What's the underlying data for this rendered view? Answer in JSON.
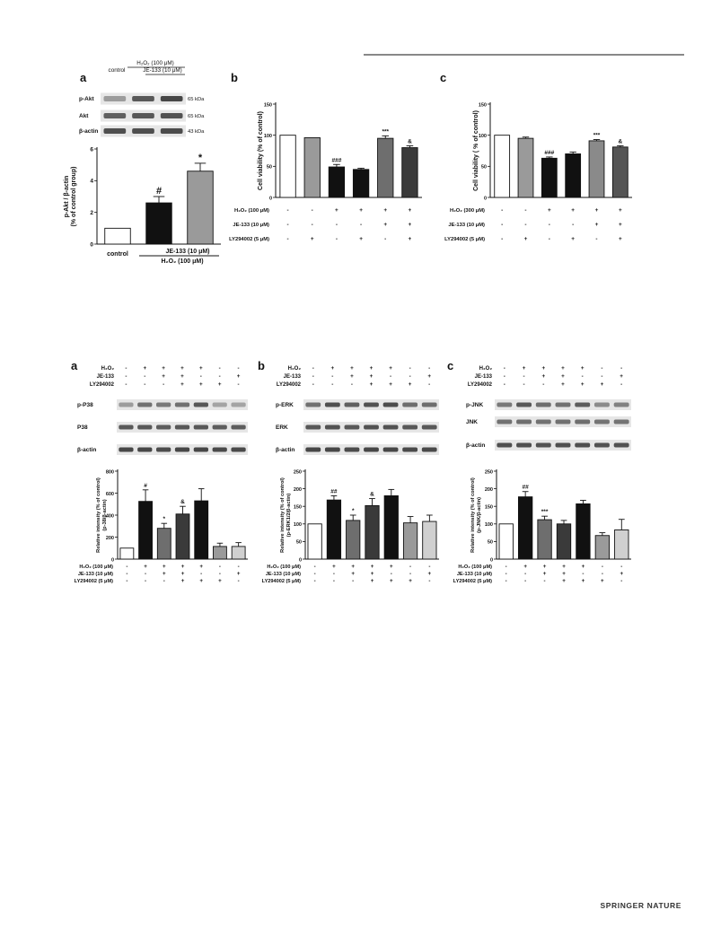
{
  "header": {
    "rule": true
  },
  "footer": {
    "publisher": "SPRINGER NATURE"
  },
  "figure1": {
    "panel_a": {
      "letter": "a",
      "blot": {
        "h2o2_label": "H₂O₂ (100 μM)",
        "je_label": "JE-133 (10 μM)",
        "control_label": "control",
        "rows": [
          {
            "name": "p-Akt",
            "kda": "65 kDa"
          },
          {
            "name": "Akt",
            "kda": "65 kDa"
          },
          {
            "name": "β-actin",
            "kda": "43 kDa"
          }
        ]
      },
      "chart_data": {
        "type": "bar",
        "ylabel": "p-Akt / β-actin\n(% of control group)",
        "ylim": [
          0,
          6
        ],
        "yticks": [
          0,
          2,
          4,
          6
        ],
        "categories": [
          "control",
          "H₂O₂",
          "H₂O₂ + JE-133"
        ],
        "values": [
          1,
          2.6,
          4.6
        ],
        "errors": [
          0,
          0.4,
          0.5
        ],
        "annotations": [
          "",
          "#",
          "*"
        ],
        "fills": [
          "#ffffff",
          "#111111",
          "#9a9a9a"
        ],
        "x_labels": {
          "control": "control",
          "je": "JE-133 (10 μM)",
          "h2o2": "H₂O₂ (100 μM)"
        }
      }
    },
    "panel_b": {
      "letter": "b",
      "chart_data": {
        "type": "bar",
        "ylabel": "Cell viability (% of control)",
        "ylim": [
          0,
          150
        ],
        "yticks": [
          0,
          50,
          100,
          150
        ],
        "values": [
          100,
          96,
          49,
          45,
          95,
          80
        ],
        "errors": [
          0,
          0,
          4,
          2,
          4,
          3
        ],
        "annotations": [
          "",
          "",
          "###",
          "",
          "***",
          "&"
        ],
        "fills": [
          "#ffffff",
          "#9a9a9a",
          "#111111",
          "#111111",
          "#6e6e6e",
          "#3a3a3a"
        ],
        "conditions": [
          {
            "label": "H₂O₂ (100 μM)",
            "signs": [
              "-",
              "-",
              "+",
              "+",
              "+",
              "+"
            ]
          },
          {
            "label": "JE-133 (10 μM)",
            "signs": [
              "-",
              "-",
              "-",
              "-",
              "+",
              "+"
            ]
          },
          {
            "label": "LY294002 (5 μM)",
            "signs": [
              "-",
              "+",
              "-",
              "+",
              "-",
              "+"
            ]
          }
        ]
      }
    },
    "panel_c": {
      "letter": "c",
      "chart_data": {
        "type": "bar",
        "ylabel": "Cell viability ( % of control)",
        "ylim": [
          0,
          150
        ],
        "yticks": [
          0,
          50,
          100,
          150
        ],
        "values": [
          100,
          95,
          63,
          70,
          91,
          81
        ],
        "errors": [
          0,
          2,
          2,
          3,
          2,
          2
        ],
        "annotations": [
          "",
          "",
          "###",
          "",
          "***",
          "&"
        ],
        "fills": [
          "#ffffff",
          "#9a9a9a",
          "#111111",
          "#111111",
          "#8a8a8a",
          "#555555"
        ],
        "conditions": [
          {
            "label": "H₂O₂ (300 μM)",
            "signs": [
              "-",
              "-",
              "+",
              "+",
              "+",
              "+"
            ]
          },
          {
            "label": "JE-133 (10 μM)",
            "signs": [
              "-",
              "-",
              "-",
              "-",
              "+",
              "+"
            ]
          },
          {
            "label": "LY294002 (5 μM)",
            "signs": [
              "-",
              "+",
              "-",
              "+",
              "-",
              "+"
            ]
          }
        ]
      }
    }
  },
  "figure2": {
    "blot_conditions": [
      {
        "label": "H₂O₂",
        "signs": [
          "-",
          "+",
          "+",
          "+",
          "+",
          "-",
          "-"
        ]
      },
      {
        "label": "JE-133",
        "signs": [
          "-",
          "-",
          "+",
          "+",
          "-",
          "-",
          "+"
        ]
      },
      {
        "label": "LY294002",
        "signs": [
          "-",
          "-",
          "-",
          "+",
          "+",
          "+",
          "-"
        ]
      }
    ],
    "chart_conditions": [
      {
        "label": "H₂O₂ (100 μM)",
        "signs": [
          "-",
          "+",
          "+",
          "+",
          "+",
          "-",
          "-"
        ]
      },
      {
        "label": "JE-133 (10 μM)",
        "signs": [
          "-",
          "-",
          "+",
          "+",
          "-",
          "-",
          "+"
        ]
      },
      {
        "label": "LY294002 (5 μM)",
        "signs": [
          "-",
          "-",
          "-",
          "+",
          "+",
          "+",
          "-"
        ]
      }
    ],
    "panel_a": {
      "letter": "a",
      "blot_rows": [
        "p-P38",
        "P38",
        "β-actin"
      ],
      "chart_data": {
        "type": "bar",
        "ylabel": "Relative intensity (% of control)\n(p-38/β-actin)",
        "ylim": [
          0,
          800
        ],
        "yticks": [
          0,
          200,
          400,
          600,
          800
        ],
        "values": [
          100,
          525,
          280,
          410,
          530,
          115,
          115
        ],
        "errors": [
          0,
          105,
          45,
          70,
          110,
          30,
          35
        ],
        "annotations": [
          "",
          "#",
          "*",
          "&",
          "",
          "",
          ""
        ],
        "fills": [
          "#ffffff",
          "#111111",
          "#6e6e6e",
          "#3a3a3a",
          "#111111",
          "#9a9a9a",
          "#d0d0d0"
        ]
      }
    },
    "panel_b": {
      "letter": "b",
      "blot_rows": [
        "p-ERK",
        "ERK",
        "β-actin"
      ],
      "chart_data": {
        "type": "bar",
        "ylabel": "Relative intensity (% of control)\n(p-ERK1/2/β-actin)",
        "ylim": [
          0,
          250
        ],
        "yticks": [
          0,
          50,
          100,
          150,
          200,
          250
        ],
        "values": [
          100,
          168,
          110,
          152,
          180,
          103,
          107
        ],
        "errors": [
          0,
          12,
          15,
          20,
          18,
          18,
          18
        ],
        "annotations": [
          "",
          "##",
          "*",
          "&",
          "",
          "",
          ""
        ],
        "fills": [
          "#ffffff",
          "#111111",
          "#6e6e6e",
          "#3a3a3a",
          "#111111",
          "#9a9a9a",
          "#d0d0d0"
        ]
      }
    },
    "panel_c": {
      "letter": "c",
      "blot_rows": [
        "p-JNK",
        "JNK",
        "β-actin"
      ],
      "chart_data": {
        "type": "bar",
        "ylabel": "Relative intensity (% of control)\n(p-JNK/β-actin)",
        "ylim": [
          0,
          250
        ],
        "yticks": [
          0,
          50,
          100,
          150,
          200,
          250
        ],
        "values": [
          100,
          177,
          112,
          100,
          157,
          67,
          83
        ],
        "errors": [
          0,
          15,
          10,
          10,
          10,
          8,
          30
        ],
        "annotations": [
          "",
          "##",
          "***",
          "",
          "",
          "",
          ""
        ],
        "fills": [
          "#ffffff",
          "#111111",
          "#6e6e6e",
          "#3a3a3a",
          "#111111",
          "#9a9a9a",
          "#d0d0d0"
        ]
      }
    }
  }
}
